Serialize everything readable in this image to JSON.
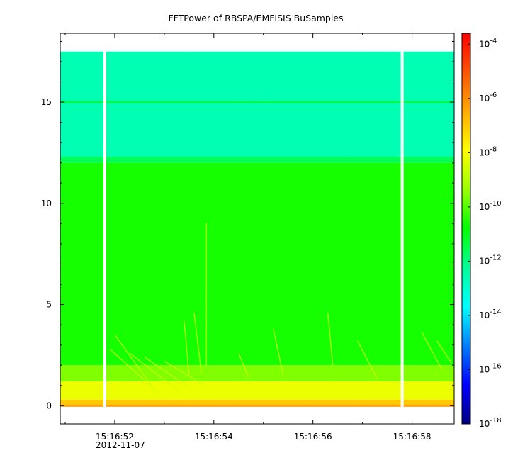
{
  "chart_data": {
    "type": "heatmap",
    "title": "FFTPower of RBSPA/EMFISIS  BuSamples",
    "xlabel": "",
    "ylabel": "",
    "x_ticks": [
      "15:16:52",
      "15:16:54",
      "15:16:56",
      "15:16:58"
    ],
    "x_tick_seconds": [
      52,
      54,
      56,
      58
    ],
    "x_date_label": "2012-11-07",
    "xlim_seconds": [
      50.9,
      58.85
    ],
    "y_ticks": [
      "0",
      "5",
      "10",
      "15"
    ],
    "y_tick_values": [
      0,
      5,
      10,
      15
    ],
    "ylim": [
      -0.9,
      18.4
    ],
    "data_top_y": 17.5,
    "gaps_seconds": [
      51.8,
      57.8
    ],
    "colorbar": {
      "scale": "log",
      "range_exponents": [
        -18,
        -3.6
      ],
      "ticks": [
        {
          "base": "10",
          "exp": "-4",
          "value_exp": -4
        },
        {
          "base": "10",
          "exp": "-6",
          "value_exp": -6
        },
        {
          "base": "10",
          "exp": "-8",
          "value_exp": -8
        },
        {
          "base": "10",
          "exp": "-10",
          "value_exp": -10
        },
        {
          "base": "10",
          "exp": "-12",
          "value_exp": -12
        },
        {
          "base": "10",
          "exp": "-14",
          "value_exp": -14
        },
        {
          "base": "10",
          "exp": "-16",
          "value_exp": -16
        },
        {
          "base": "10",
          "exp": "-18",
          "value_exp": -18
        }
      ],
      "colors": [
        "#00007f",
        "#0000ff",
        "#007fff",
        "#00ffff",
        "#00ff9a",
        "#00ff00",
        "#9aff00",
        "#ffff00",
        "#ffaa00",
        "#ff5500",
        "#ff0000"
      ]
    },
    "bands": [
      {
        "y_from": 12.3,
        "y_to": 17.5,
        "power_exp": -12.6
      },
      {
        "y_from": 12.0,
        "y_to": 12.3,
        "power_exp": -11.6
      },
      {
        "y_from": 2.0,
        "y_to": 12.0,
        "power_exp": -10.6
      },
      {
        "y_from": 1.2,
        "y_to": 2.0,
        "power_exp": -9.6
      },
      {
        "y_from": 0.3,
        "y_to": 1.2,
        "power_exp": -8.2
      },
      {
        "y_from": 0.0,
        "y_to": 0.3,
        "power_exp": -7.0
      }
    ],
    "line_15_power_exp": -10.8
  }
}
